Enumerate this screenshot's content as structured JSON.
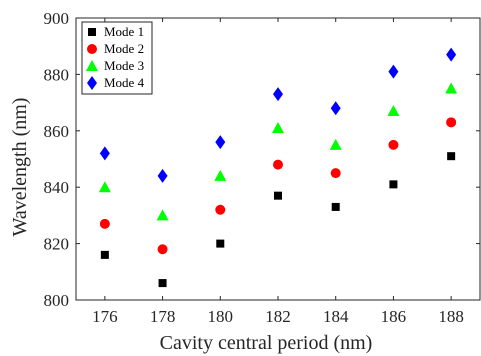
{
  "chart_data": {
    "type": "scatter",
    "title": "",
    "xlabel": "Cavity central period (nm)",
    "ylabel": "Wavelength (nm)",
    "xlim": [
      175,
      189
    ],
    "ylim": [
      800,
      900
    ],
    "x_ticks": [
      176,
      178,
      180,
      182,
      184,
      186,
      188
    ],
    "y_ticks": [
      800,
      820,
      840,
      860,
      880,
      900
    ],
    "grid": false,
    "legend_position": "top-left",
    "x": [
      176,
      178,
      180,
      182,
      184,
      186,
      188
    ],
    "series": [
      {
        "name": "Mode 1",
        "marker": "square",
        "color": "#000000",
        "values": [
          816,
          806,
          820,
          837,
          833,
          841,
          851
        ]
      },
      {
        "name": "Mode 2",
        "marker": "circle",
        "color": "#ff0000",
        "values": [
          827,
          818,
          832,
          848,
          845,
          855,
          863
        ]
      },
      {
        "name": "Mode 3",
        "marker": "triangle",
        "color": "#00ff00",
        "values": [
          840,
          830,
          844,
          861,
          855,
          867,
          875
        ]
      },
      {
        "name": "Mode 4",
        "marker": "diamond",
        "color": "#0000ff",
        "values": [
          852,
          844,
          856,
          873,
          868,
          881,
          887
        ]
      }
    ]
  }
}
